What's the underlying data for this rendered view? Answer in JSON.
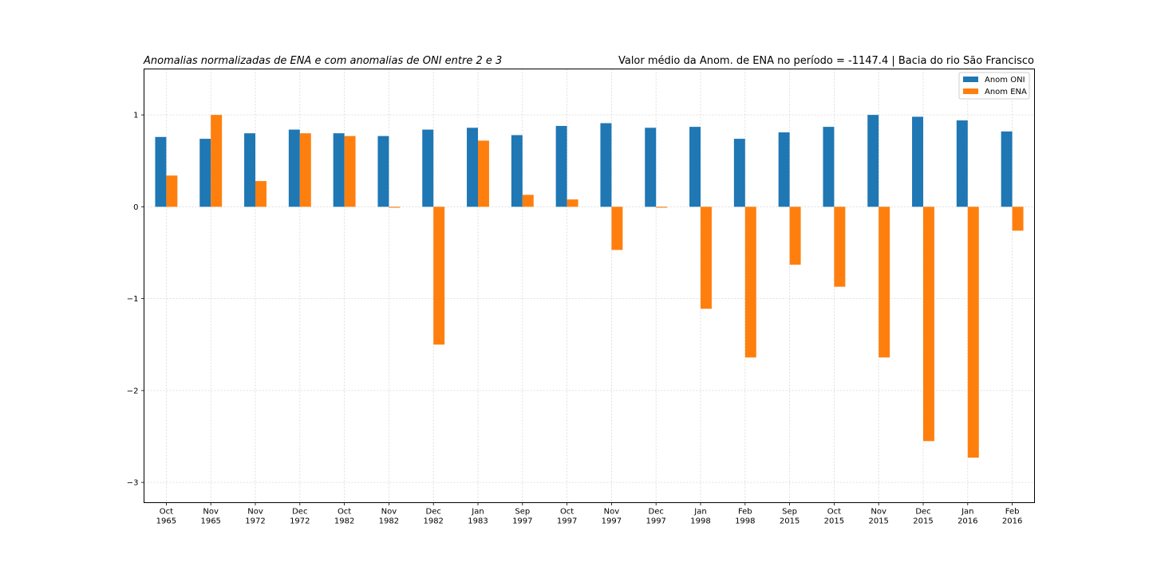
{
  "chart_data": {
    "type": "bar",
    "title_left": "Anomalias normalizadas de ENA e com anomalias de ONI entre 2 e 3",
    "title_right": "Valor médio da Anom. de ENA no período = -1147.4 | Bacia do rio São Francisco",
    "xlabel": "",
    "ylabel": "",
    "ylim": [
      -3.22,
      1.5
    ],
    "yticks": [
      1,
      0,
      -1,
      -2,
      -3
    ],
    "ytick_labels": [
      "1",
      "0",
      "−1",
      "−2",
      "−3"
    ],
    "grid": true,
    "legend_position": "upper right",
    "categories": [
      [
        "Oct",
        "1965"
      ],
      [
        "Nov",
        "1965"
      ],
      [
        "Nov",
        "1972"
      ],
      [
        "Dec",
        "1972"
      ],
      [
        "Oct",
        "1982"
      ],
      [
        "Nov",
        "1982"
      ],
      [
        "Dec",
        "1982"
      ],
      [
        "Jan",
        "1983"
      ],
      [
        "Sep",
        "1997"
      ],
      [
        "Oct",
        "1997"
      ],
      [
        "Nov",
        "1997"
      ],
      [
        "Dec",
        "1997"
      ],
      [
        "Jan",
        "1998"
      ],
      [
        "Feb",
        "1998"
      ],
      [
        "Sep",
        "2015"
      ],
      [
        "Oct",
        "2015"
      ],
      [
        "Nov",
        "2015"
      ],
      [
        "Dec",
        "2015"
      ],
      [
        "Jan",
        "2016"
      ],
      [
        "Feb",
        "2016"
      ]
    ],
    "series": [
      {
        "name": "Anom ONI",
        "color": "#1f77b4",
        "values": [
          0.76,
          0.74,
          0.8,
          0.84,
          0.8,
          0.77,
          0.84,
          0.86,
          0.78,
          0.88,
          0.91,
          0.86,
          0.87,
          0.74,
          0.81,
          0.87,
          1.0,
          0.98,
          0.94,
          0.82
        ]
      },
      {
        "name": "Anom ENA",
        "color": "#ff7f0e",
        "values": [
          0.34,
          1.0,
          0.28,
          0.8,
          0.77,
          -0.01,
          -1.5,
          0.72,
          0.13,
          0.08,
          -0.47,
          -0.01,
          -1.11,
          -1.64,
          -0.63,
          -0.87,
          -1.64,
          -2.55,
          -2.73,
          -0.26
        ]
      }
    ]
  }
}
